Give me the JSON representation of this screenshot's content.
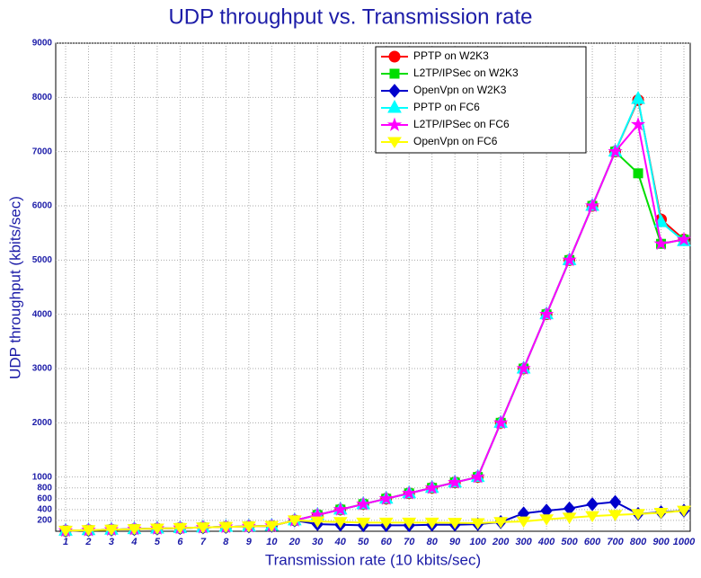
{
  "chart_data": {
    "type": "line",
    "title": "UDP throughput vs. Transmission rate",
    "x_label": "Transmission rate (10 kbits/sec)",
    "y_label": "UDP throughput (kbits/sec)",
    "categories": [
      "1",
      "2",
      "3",
      "4",
      "5",
      "6",
      "7",
      "8",
      "9",
      "10",
      "20",
      "30",
      "40",
      "50",
      "60",
      "70",
      "80",
      "90",
      "100",
      "200",
      "300",
      "400",
      "500",
      "600",
      "700",
      "800",
      "900",
      "1000"
    ],
    "ylim": [
      0,
      9000
    ],
    "yticks": [
      200,
      400,
      600,
      800,
      1000,
      2000,
      3000,
      4000,
      5000,
      6000,
      7000,
      8000,
      9000
    ],
    "grid": true,
    "legend": "upper right",
    "series": [
      {
        "name": "PPTP on W2K3",
        "color": "#ff0000",
        "marker": "circle",
        "values": [
          10,
          20,
          30,
          40,
          50,
          60,
          70,
          80,
          90,
          100,
          200,
          300,
          400,
          500,
          600,
          700,
          800,
          900,
          1000,
          2000,
          3000,
          4000,
          5000,
          6000,
          7000,
          7950,
          5750,
          5380
        ]
      },
      {
        "name": "L2TP/IPSec on W2K3",
        "color": "#00dd00",
        "marker": "square",
        "values": [
          10,
          20,
          30,
          40,
          50,
          60,
          70,
          80,
          90,
          100,
          200,
          300,
          400,
          500,
          600,
          700,
          800,
          900,
          1000,
          2000,
          3000,
          4000,
          5000,
          6000,
          7000,
          6600,
          5300,
          5380
        ]
      },
      {
        "name": "OpenVpn on W2K3",
        "color": "#0000cc",
        "marker": "diamond",
        "values": [
          10,
          20,
          30,
          40,
          50,
          60,
          70,
          80,
          90,
          100,
          200,
          130,
          120,
          110,
          110,
          110,
          120,
          120,
          130,
          170,
          330,
          380,
          420,
          500,
          540,
          320,
          350,
          380
        ]
      },
      {
        "name": "PPTP on FC6",
        "color": "#00ffff",
        "marker": "triangle-up",
        "values": [
          10,
          20,
          30,
          40,
          50,
          60,
          70,
          80,
          90,
          100,
          200,
          300,
          400,
          500,
          600,
          700,
          800,
          900,
          1000,
          2000,
          3000,
          4000,
          5000,
          6000,
          7000,
          7970,
          5700,
          5350
        ]
      },
      {
        "name": "L2TP/IPSec on FC6",
        "color": "#ff00ff",
        "marker": "star",
        "values": [
          10,
          20,
          30,
          40,
          50,
          60,
          70,
          80,
          90,
          100,
          200,
          300,
          400,
          500,
          600,
          700,
          800,
          900,
          1000,
          2000,
          3000,
          4000,
          5000,
          6000,
          7000,
          7500,
          5300,
          5380
        ]
      },
      {
        "name": "OpenVpn on FC6",
        "color": "#ffff00",
        "marker": "triangle-down",
        "values": [
          10,
          20,
          30,
          40,
          50,
          60,
          70,
          80,
          90,
          100,
          200,
          180,
          170,
          160,
          160,
          160,
          160,
          155,
          150,
          170,
          180,
          220,
          250,
          280,
          300,
          320,
          340,
          380
        ]
      }
    ]
  }
}
